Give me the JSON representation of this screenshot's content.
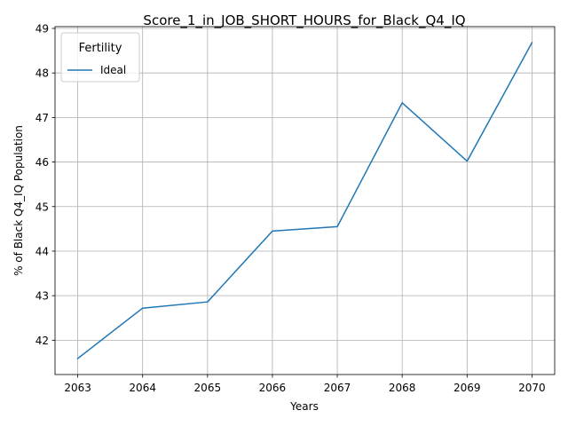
{
  "chart_data": {
    "type": "line",
    "title": "Score_1_in_JOB_SHORT_HOURS_for_Black_Q4_IQ",
    "xlabel": "Years",
    "ylabel": "% of Black Q4_IQ Population",
    "x": [
      2063,
      2064,
      2065,
      2066,
      2067,
      2068,
      2069,
      2070
    ],
    "xticks": [
      "2063",
      "2064",
      "2065",
      "2066",
      "2067",
      "2068",
      "2069",
      "2070"
    ],
    "yticks": [
      "42",
      "43",
      "44",
      "45",
      "46",
      "47",
      "48",
      "49"
    ],
    "xlim": [
      2062.65,
      2070.35
    ],
    "ylim": [
      41.23,
      49.04
    ],
    "grid": true,
    "legend": {
      "title": "Fertility",
      "placement": "top-left"
    },
    "series": [
      {
        "name": "Ideal",
        "color": "#1f77b4",
        "values": [
          41.59,
          42.72,
          42.86,
          44.45,
          44.55,
          47.33,
          46.02,
          48.68
        ]
      }
    ]
  }
}
